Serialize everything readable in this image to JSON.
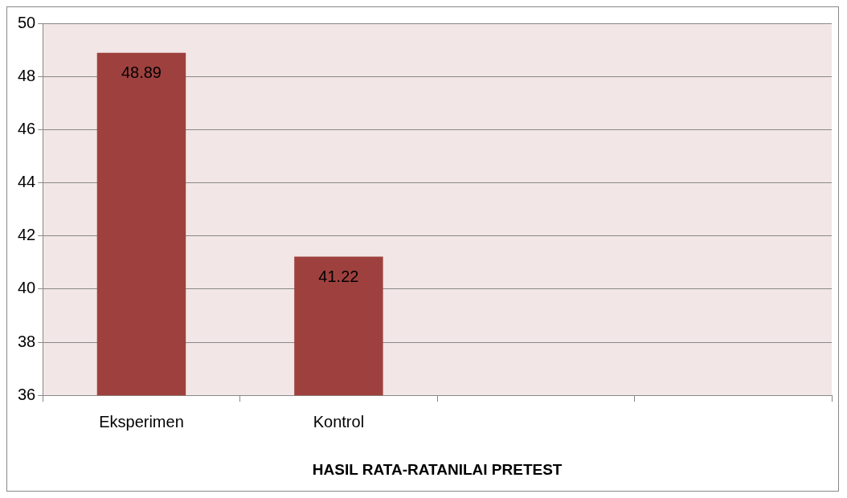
{
  "chart_data": {
    "type": "bar",
    "xlabel": "HASIL RATA-RATANILAI PRETEST",
    "categories": [
      "Eksperimen",
      "Kontrol",
      null,
      null
    ],
    "values": [
      48.89,
      41.22,
      null,
      null
    ],
    "color": "#9e413e",
    "ylim": [
      36,
      50
    ],
    "yticks": [
      36,
      38,
      40,
      42,
      44,
      46,
      48,
      50
    ],
    "grid": "y",
    "data_labels": true
  }
}
